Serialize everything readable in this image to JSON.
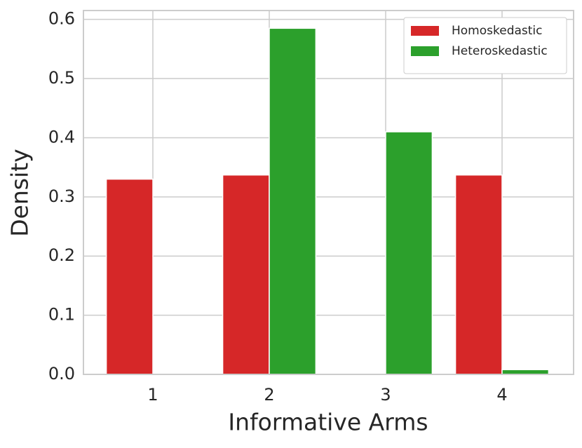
{
  "chart_data": {
    "type": "grouped-bar",
    "x_label": "Informative Arms",
    "y_label": "Density",
    "categories": [
      "1",
      "2",
      "3",
      "4"
    ],
    "series": [
      {
        "name": "Homoskedastic",
        "color": "#d62728",
        "values": [
          0.33,
          0.337,
          0,
          0.337
        ]
      },
      {
        "name": "Heteroskedastic",
        "color": "#2ca02c",
        "values": [
          0,
          0.585,
          0.41,
          0.008
        ]
      }
    ],
    "ylim": [
      0,
      0.615
    ],
    "yticks": [
      0.0,
      0.1,
      0.2,
      0.3,
      0.4,
      0.5,
      0.6
    ],
    "grid": true,
    "legend": "upper right"
  }
}
